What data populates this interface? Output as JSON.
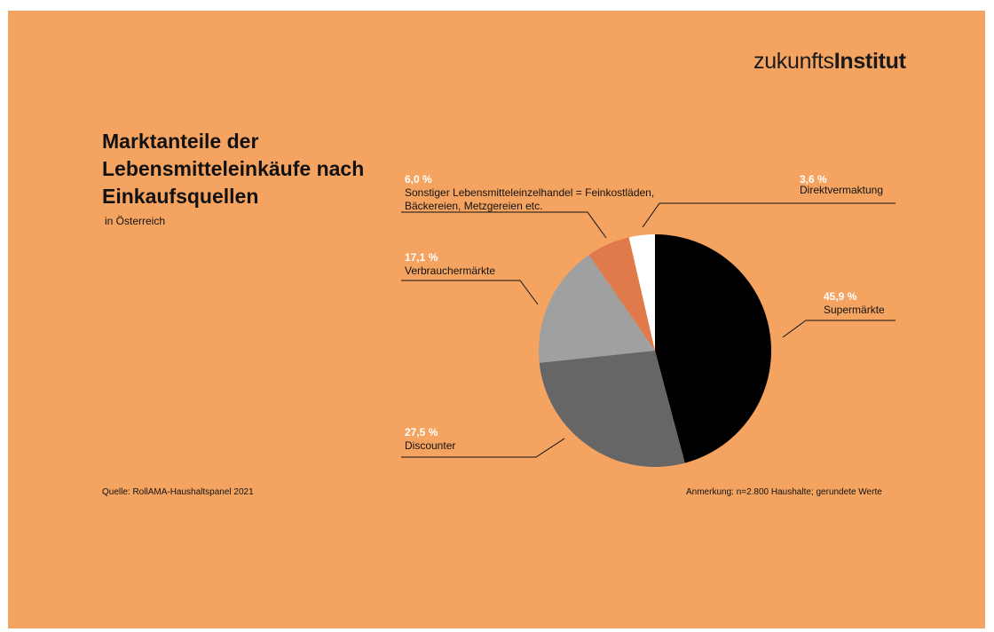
{
  "brand": {
    "light": "zukunfts",
    "bold": "Institut"
  },
  "colors": {
    "background": "#f4a460"
  },
  "chart_data": {
    "type": "pie",
    "title": "Marktanteile der Lebensmitteleinkäufe nach Einkaufsquellen",
    "subtitle": "in Österreich",
    "unit": "%",
    "slices": [
      {
        "label": "Supermärkte",
        "value": 45.9,
        "value_label": "45,9 %",
        "color": "#000000"
      },
      {
        "label": "Discounter",
        "value": 27.5,
        "value_label": "27,5 %",
        "color": "#666666"
      },
      {
        "label": "Verbrauchermärkte",
        "value": 17.1,
        "value_label": "17,1 %",
        "color": "#a0a0a0"
      },
      {
        "label": "Sonstiger Lebensmitteleinzelhandel = Feinkostläden, Bäckereien, Metzgereien etc.",
        "label_lines": [
          "Sonstiger Lebensmitteleinzelhandel = Feinkostläden,",
          "Bäckereien, Metzgereien etc."
        ],
        "value": 6.0,
        "value_label": "6,0 %",
        "color": "#e07a4a"
      },
      {
        "label": "Direktvermaktung",
        "value": 3.6,
        "value_label": "3,6 %",
        "color": "#ffffff"
      }
    ],
    "source": "Quelle: RollAMA-Haushaltspanel 2021",
    "note": "Anmerkung: n=2.800 Haushalte; gerundete Werte"
  }
}
